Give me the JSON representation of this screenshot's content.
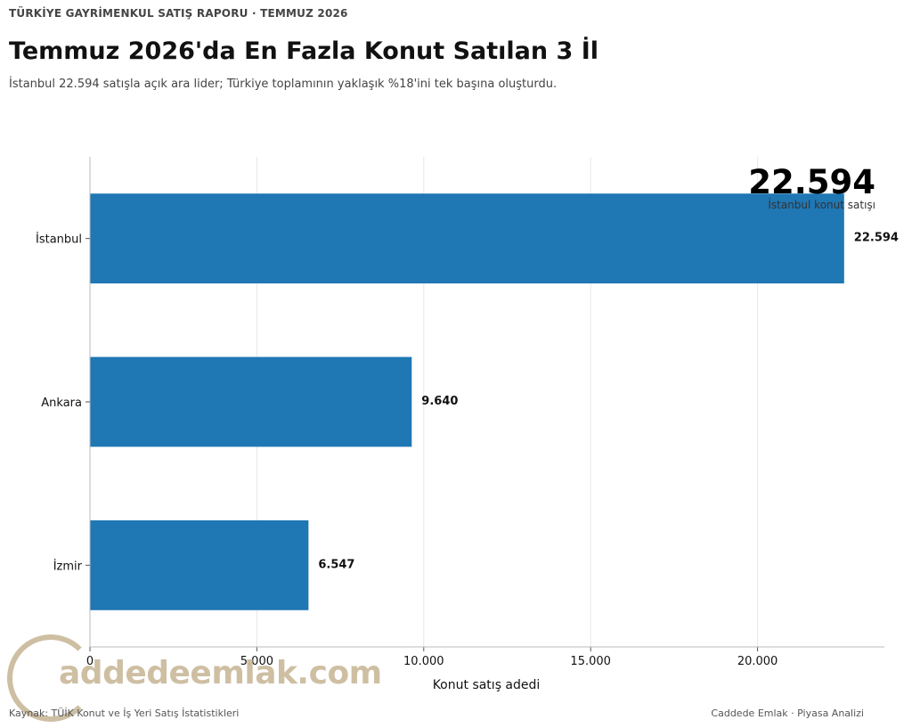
{
  "header": {
    "kicker": "TÜRKİYE GAYRİMENKUL SATIŞ RAPORU · TEMMUZ 2026",
    "title": "Temmuz 2026'da En Fazla Konut Satılan 3 İl",
    "subtitle": "İstanbul 22.594 satışla açık ara lider; Türkiye toplamının yaklaşık %18'ini tek başına oluşturdu."
  },
  "callout": {
    "value": "22.594",
    "label": "İstanbul konut satışı"
  },
  "footer": {
    "source": "Kaynak: TÜİK Konut ve İş Yeri Satış İstatistikleri",
    "brand": "Caddede Emlak · Piyasa Analizi"
  },
  "watermark": {
    "text": "addedeemlak.com"
  },
  "colors": {
    "bar": "#1f77b4",
    "grid": "#e8e8e8",
    "axis": "#bbbbbb"
  },
  "chart_data": {
    "type": "bar",
    "orientation": "horizontal",
    "categories": [
      "İstanbul",
      "Ankara",
      "İzmir"
    ],
    "values": [
      22594,
      9640,
      6547
    ],
    "value_labels": [
      "22.594",
      "9.640",
      "6.547"
    ],
    "xlabel": "Konut satış adedi",
    "ylabel": "",
    "xlim": [
      0,
      23800
    ],
    "xticks": [
      0,
      5000,
      10000,
      15000,
      20000
    ],
    "xtick_labels": [
      "0",
      "5.000",
      "10.000",
      "15.000",
      "20.000"
    ],
    "grid": "vertical",
    "legend": "none"
  }
}
